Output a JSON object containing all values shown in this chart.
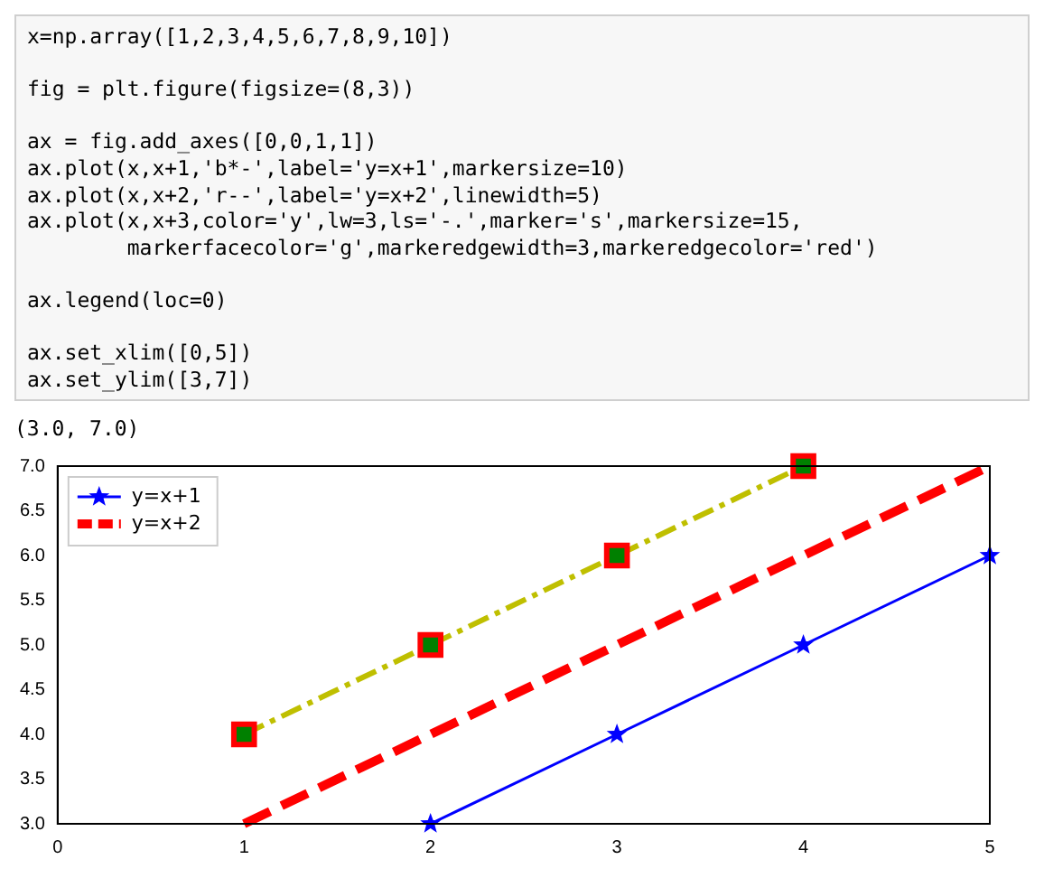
{
  "chart_data": {
    "type": "line",
    "annotations": [
      "x=np.array([1,2,3,4,5,6,7,8,9,10])\n\nfig = plt.figure(figsize=(8,3))\n\nax = fig.add_axes([0,0,1,1])\nax.plot(x,x+1,'b*-',label='y=x+1',markersize=10)\nax.plot(x,x+2,'r--',label='y=x+2',linewidth=5)\nax.plot(x,x+3,color='y',lw=3,ls='-.',marker='s',markersize=15,\n        markerfacecolor='g',markeredgewidth=3,markeredgecolor='red')\n\nax.legend(loc=0)\n\nax.set_xlim([0,5])\nax.set_ylim([3,7])",
      "(3.0, 7.0)"
    ],
    "x": [
      1,
      2,
      3,
      4,
      5
    ],
    "series": [
      {
        "name": "y=x+1",
        "color": "#0000ff",
        "values": [
          null,
          3,
          4,
          5,
          6
        ],
        "marker": "star",
        "line_style": "solid"
      },
      {
        "name": "y=x+2",
        "color": "#ff0000",
        "values": [
          3,
          4,
          5,
          6,
          7
        ],
        "marker": "none",
        "line_style": "dashed"
      },
      {
        "color": "#bfbf00",
        "values": [
          4,
          5,
          6,
          7,
          null
        ],
        "marker": "square",
        "line_style": "dashed"
      }
    ],
    "xlim": [
      0,
      5
    ],
    "xticks": [
      0,
      1,
      2,
      3,
      4,
      5
    ],
    "ylim": [
      3,
      7
    ],
    "yticks": [
      {
        "value": 3,
        "label": "3.0"
      },
      {
        "value": 3.5,
        "label": "3.5"
      },
      {
        "value": 4,
        "label": "4.0"
      },
      {
        "value": 4.5,
        "label": "4.5"
      },
      {
        "value": 5,
        "label": "5.0"
      },
      {
        "value": 5.5,
        "label": "5.5"
      },
      {
        "value": 6,
        "label": "6.0"
      },
      {
        "value": 6.5,
        "label": "6.5"
      },
      {
        "value": 7,
        "label": "7.0"
      }
    ],
    "grid": false,
    "legend": "top left"
  }
}
